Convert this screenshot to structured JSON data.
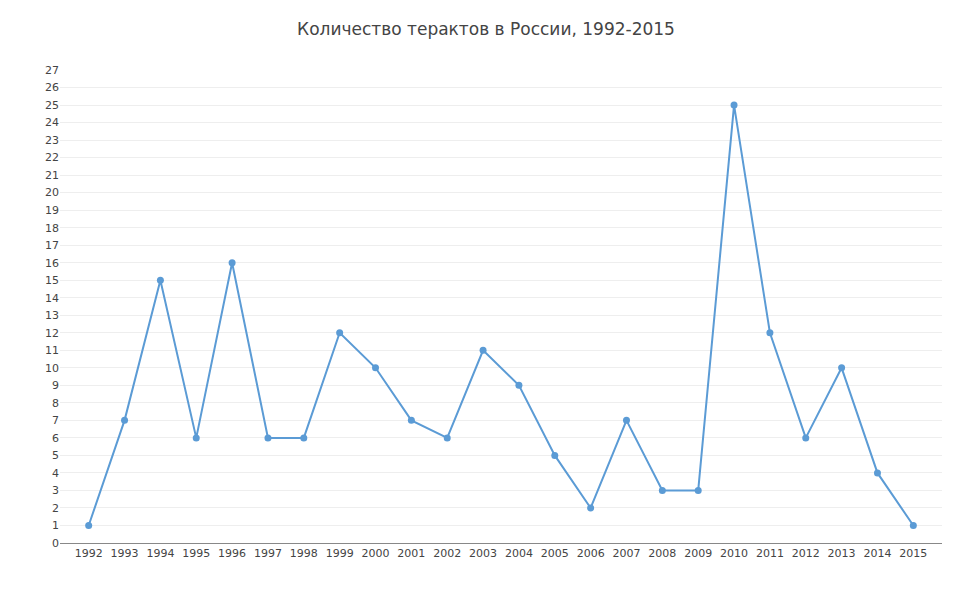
{
  "chart_data": {
    "type": "line",
    "title": "Количество терактов в России, 1992-2015",
    "x": [
      1992,
      1993,
      1994,
      1995,
      1996,
      1997,
      1998,
      1999,
      2000,
      2001,
      2002,
      2003,
      2004,
      2005,
      2006,
      2007,
      2008,
      2009,
      2010,
      2011,
      2012,
      2013,
      2014,
      2015
    ],
    "values": [
      1,
      7,
      15,
      6,
      16,
      6,
      6,
      12,
      10,
      7,
      6,
      11,
      9,
      5,
      2,
      7,
      3,
      3,
      25,
      12,
      6,
      10,
      4,
      1
    ],
    "color": "#5b9bd5",
    "marker": "circle",
    "xlim": [
      1991.2,
      2015.8
    ],
    "xticks": [
      1992,
      1993,
      1994,
      1995,
      1996,
      1997,
      1998,
      1999,
      2000,
      2001,
      2002,
      2003,
      2004,
      2005,
      2006,
      2007,
      2008,
      2009,
      2010,
      2011,
      2012,
      2013,
      2014,
      2015
    ],
    "ylim": [
      0,
      27
    ],
    "yticks": [
      0,
      1,
      2,
      3,
      4,
      5,
      6,
      7,
      8,
      9,
      10,
      11,
      12,
      13,
      14,
      15,
      16,
      17,
      18,
      19,
      20,
      21,
      22,
      23,
      24,
      25,
      26,
      27
    ],
    "grid": true
  }
}
